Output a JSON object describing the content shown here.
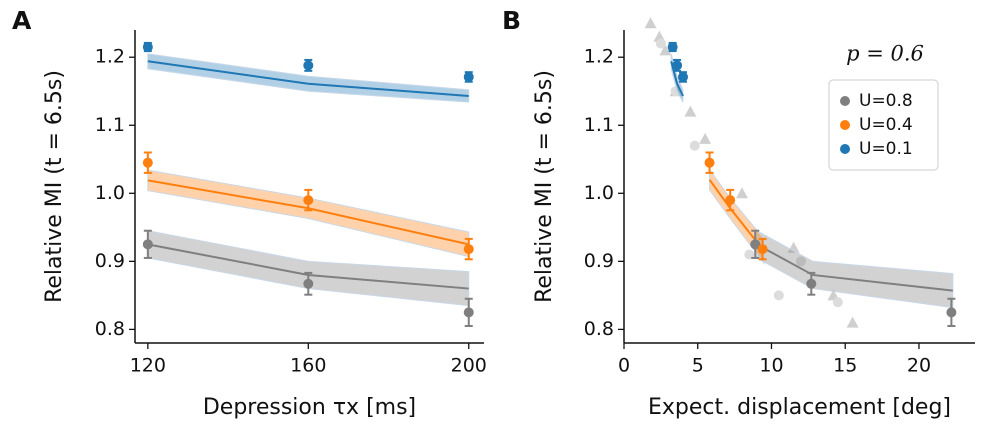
{
  "chart_data": [
    {
      "type": "line",
      "panel_label": "A",
      "xlabel": "Depression τx [ms]",
      "ylabel": "Relative MI (t = 6.5s)",
      "xlim": [
        116.8,
        203.8
      ],
      "ylim": [
        0.78,
        1.24
      ],
      "xticks": [
        120,
        160,
        200
      ],
      "yticks": [
        0.8,
        0.9,
        {
          "value": 1,
          "label": "1.0"
        },
        1.1,
        1.2
      ],
      "series": [
        {
          "color": "#7f7f7f",
          "x": [
            120,
            160,
            200
          ],
          "values": [
            0.925,
            0.867,
            0.825
          ],
          "errors": [
            0.02,
            0.016,
            0.02
          ],
          "fit_x": [
            120,
            160,
            200
          ],
          "fit": [
            0.925,
            0.88,
            0.86
          ],
          "fit_upper": [
            0.945,
            0.9,
            0.885
          ],
          "fit_lower": [
            0.905,
            0.86,
            0.835
          ]
        },
        {
          "color": "#ff7f0e",
          "x": [
            120,
            160,
            200
          ],
          "values": [
            1.045,
            0.99,
            0.918
          ],
          "errors": [
            0.015,
            0.015,
            0.015
          ],
          "fit_x": [
            120,
            160,
            200
          ],
          "fit": [
            1.019,
            0.978,
            0.925
          ],
          "fit_upper": [
            1.034,
            0.993,
            0.943
          ],
          "fit_lower": [
            1.004,
            0.963,
            0.907
          ]
        },
        {
          "color": "#1f77b4",
          "x": [
            120,
            160,
            200
          ],
          "values": [
            1.215,
            1.188,
            1.171
          ],
          "errors": [
            0.006,
            0.008,
            0.007
          ],
          "fit_x": [
            120,
            160,
            200
          ],
          "fit": [
            1.194,
            1.161,
            1.143
          ],
          "fit_upper": [
            1.205,
            1.172,
            1.152
          ],
          "fit_lower": [
            1.183,
            1.15,
            1.134
          ]
        }
      ]
    },
    {
      "type": "line",
      "panel_label": "B",
      "xlabel": "Expect. displacement [deg]",
      "ylabel": "Relative MI (t = 6.5s)",
      "annotation": "p = 0.6",
      "xlim": [
        0,
        23.8
      ],
      "ylim": [
        0.78,
        1.24
      ],
      "xticks": [
        0,
        5,
        10,
        15,
        20
      ],
      "yticks": [
        0.8,
        0.9,
        {
          "value": 1,
          "label": "1.0"
        },
        1.1,
        1.2
      ],
      "legend": "upper right",
      "background": [
        {
          "marker": "triangle",
          "color": "#cfcfcf",
          "x": [
            1.8,
            2.4,
            2.8,
            3.5,
            4.5,
            5.5,
            8.0,
            11.5,
            14.2,
            15.5
          ],
          "values": [
            1.25,
            1.23,
            1.21,
            1.15,
            1.12,
            1.08,
            1.0,
            0.92,
            0.85,
            0.81
          ]
        },
        {
          "marker": "circle",
          "color": "#dcdcdc",
          "x": [
            2.5,
            3.5,
            4.8,
            8.5,
            10.5,
            12.0,
            14.5
          ],
          "values": [
            1.22,
            1.15,
            1.07,
            0.91,
            0.85,
            0.9,
            0.84
          ]
        }
      ],
      "series": [
        {
          "name": "U=0.8",
          "color": "#7f7f7f",
          "x": [
            8.9,
            12.7,
            22.2
          ],
          "values": [
            0.925,
            0.867,
            0.825
          ],
          "errors": [
            0.02,
            0.016,
            0.02
          ],
          "fit_x": [
            9.0,
            12.8,
            22.3
          ],
          "fit": [
            0.925,
            0.88,
            0.857
          ],
          "fit_upper": [
            0.945,
            0.9,
            0.882
          ],
          "fit_lower": [
            0.905,
            0.86,
            0.832
          ]
        },
        {
          "name": "U=0.4",
          "color": "#ff7f0e",
          "x": [
            5.8,
            7.2,
            9.4
          ],
          "values": [
            1.045,
            0.99,
            0.918
          ],
          "errors": [
            0.015,
            0.015,
            0.015
          ],
          "fit_x": [
            5.8,
            7.2,
            9.5
          ],
          "fit": [
            1.02,
            0.978,
            0.915
          ],
          "fit_upper": [
            1.035,
            0.993,
            0.933
          ],
          "fit_lower": [
            1.005,
            0.963,
            0.897
          ]
        },
        {
          "name": "U=0.1",
          "color": "#1f77b4",
          "x": [
            3.3,
            3.6,
            4.0
          ],
          "values": [
            1.215,
            1.188,
            1.171
          ],
          "errors": [
            0.006,
            0.008,
            0.007
          ],
          "fit_x": [
            3.2,
            3.6,
            4.0
          ],
          "fit": [
            1.194,
            1.161,
            1.143
          ],
          "fit_upper": [
            1.205,
            1.172,
            1.152
          ],
          "fit_lower": [
            1.183,
            1.15,
            1.134
          ]
        }
      ]
    }
  ]
}
